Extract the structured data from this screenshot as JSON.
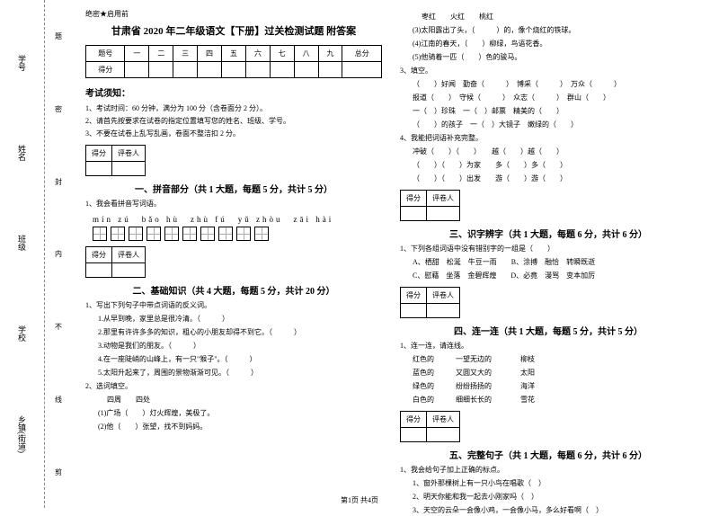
{
  "binding": {
    "labels": [
      "乡镇(街道)",
      "学校",
      "班级",
      "姓名",
      "学号"
    ],
    "cuts": [
      "剪",
      "线",
      "不",
      "内",
      "封",
      "密",
      "题"
    ]
  },
  "secret": "绝密★启用前",
  "title": "甘肃省 2020 年二年级语文【下册】过关检测试题 附答案",
  "score_headers": [
    "题号",
    "一",
    "二",
    "三",
    "四",
    "五",
    "六",
    "七",
    "八",
    "九",
    "总分"
  ],
  "score_row": "得分",
  "notice_title": "考试须知：",
  "notices": [
    "1、考试时间：60 分钟，满分为 100 分（含卷面分 2 分）。",
    "2、请首先按要求在试卷的指定位置填写您的姓名、班级、学号。",
    "3、不要在试卷上乱写乱画，卷面不整洁扣 2 分。"
  ],
  "mini": {
    "c1": "得分",
    "c2": "评卷人"
  },
  "sections": {
    "s1": "一、拼音部分（共 1 大题，每题 5 分，共计 5 分）",
    "s2": "二、基础知识（共 4 大题，每题 5 分，共计 20 分）",
    "s3": "三、识字辨字（共 1 大题，每题 6 分，共计 6 分）",
    "s4": "四、连一连（共 1 大题，每题 5 分，共计 5 分）",
    "s5": "五、完整句子（共 1 大题，每题 6 分，共计 6 分）"
  },
  "q1_1": "1、我会看拼音写词语。",
  "pinyin": "mín zú　bǎo hù　zhù fú　yǔ zhòu　zāi hài",
  "q2_1": "1、写出下列句子中带点词语的反义词。",
  "q2_1_items": [
    "1.从早到晚，家里总是很冷清。（　　　）",
    "2.那里有许许多多的知识，粗心的小朋友却得不到它。（　　　）",
    "3.动物是我们的朋友。（　　　）",
    "4.在一座陡峭的山峰上，有一只\"猴子\"。（　　　）",
    "5.太阳升起来了，周围的景物渐渐可见。（　　　）"
  ],
  "q2_2": "2、选词填空。",
  "q2_2_a": "四周　　四处",
  "q2_2_b": "(1)广场（　　）灯火辉煌，美极了。",
  "q2_2_c": "(2)他（　　）张望，找不到妈妈。",
  "q2_2_r": [
    "枣红　　火红　　桃红",
    "(3)太阳露出了头，（　　　）的，像个烧红的铁球。",
    "(4)江南的春天，（　　）柳绿，鸟语花香。",
    "(5)他骑着一匹（　　）色的骏马。"
  ],
  "q2_3": "3、填空。",
  "q2_3_items": [
    "（　　）好闻　勤奋（　　　）　博采（　　　）　万众（　　　）",
    "报道（　　）　守候（　　　）　众志（　　　）　群山（　　）",
    "一（　）珍珠　一（　）邮票　精美的（　　）",
    "（　　）的孩子　一（　）大镜子　嫩绿的（　　）"
  ],
  "q2_4": "4、我能把词语补充完整。",
  "q2_4_items": [
    "冲破（　　）（　　）　　越（　　）越（　　）",
    "（　　）（　　）为家　　多（　　）多（　　）",
    "（　　）（　　）出发　　游（　　）游（　　）"
  ],
  "q3_1": "1、下列各组词语中没有错别字的一组是（　　）",
  "q3_1_opts": [
    "A、栖甜　松涎　牛豆一雨　　B、涂搏　融恰　转瞬既逝",
    "C、慰藉　坐落　金碧辉煌　　D、必竟　漫骂　变本加厉"
  ],
  "q4_1": "1、连一连，请连线。",
  "q4_1_rows": [
    "红色的　　　一望无边的　　　　柳枝",
    "蓝色的　　　又圆又大的　　　　太阳",
    "绿色的　　　纷纷扬扬的　　　　海洋",
    "白色的　　　细细长长的　　　　雪花"
  ],
  "q5_1": "1、我会给句子加上正确的标点。",
  "q5_1_items": [
    "1、窗外那棵树上有一只小鸟在唱歌（　）",
    "2、明天你能和我一起去小刚家吗（　）",
    "3、天空的云朵一会像小鸡，一会像小马，多么好看啊（　）"
  ],
  "footer": "第1页 共4页"
}
